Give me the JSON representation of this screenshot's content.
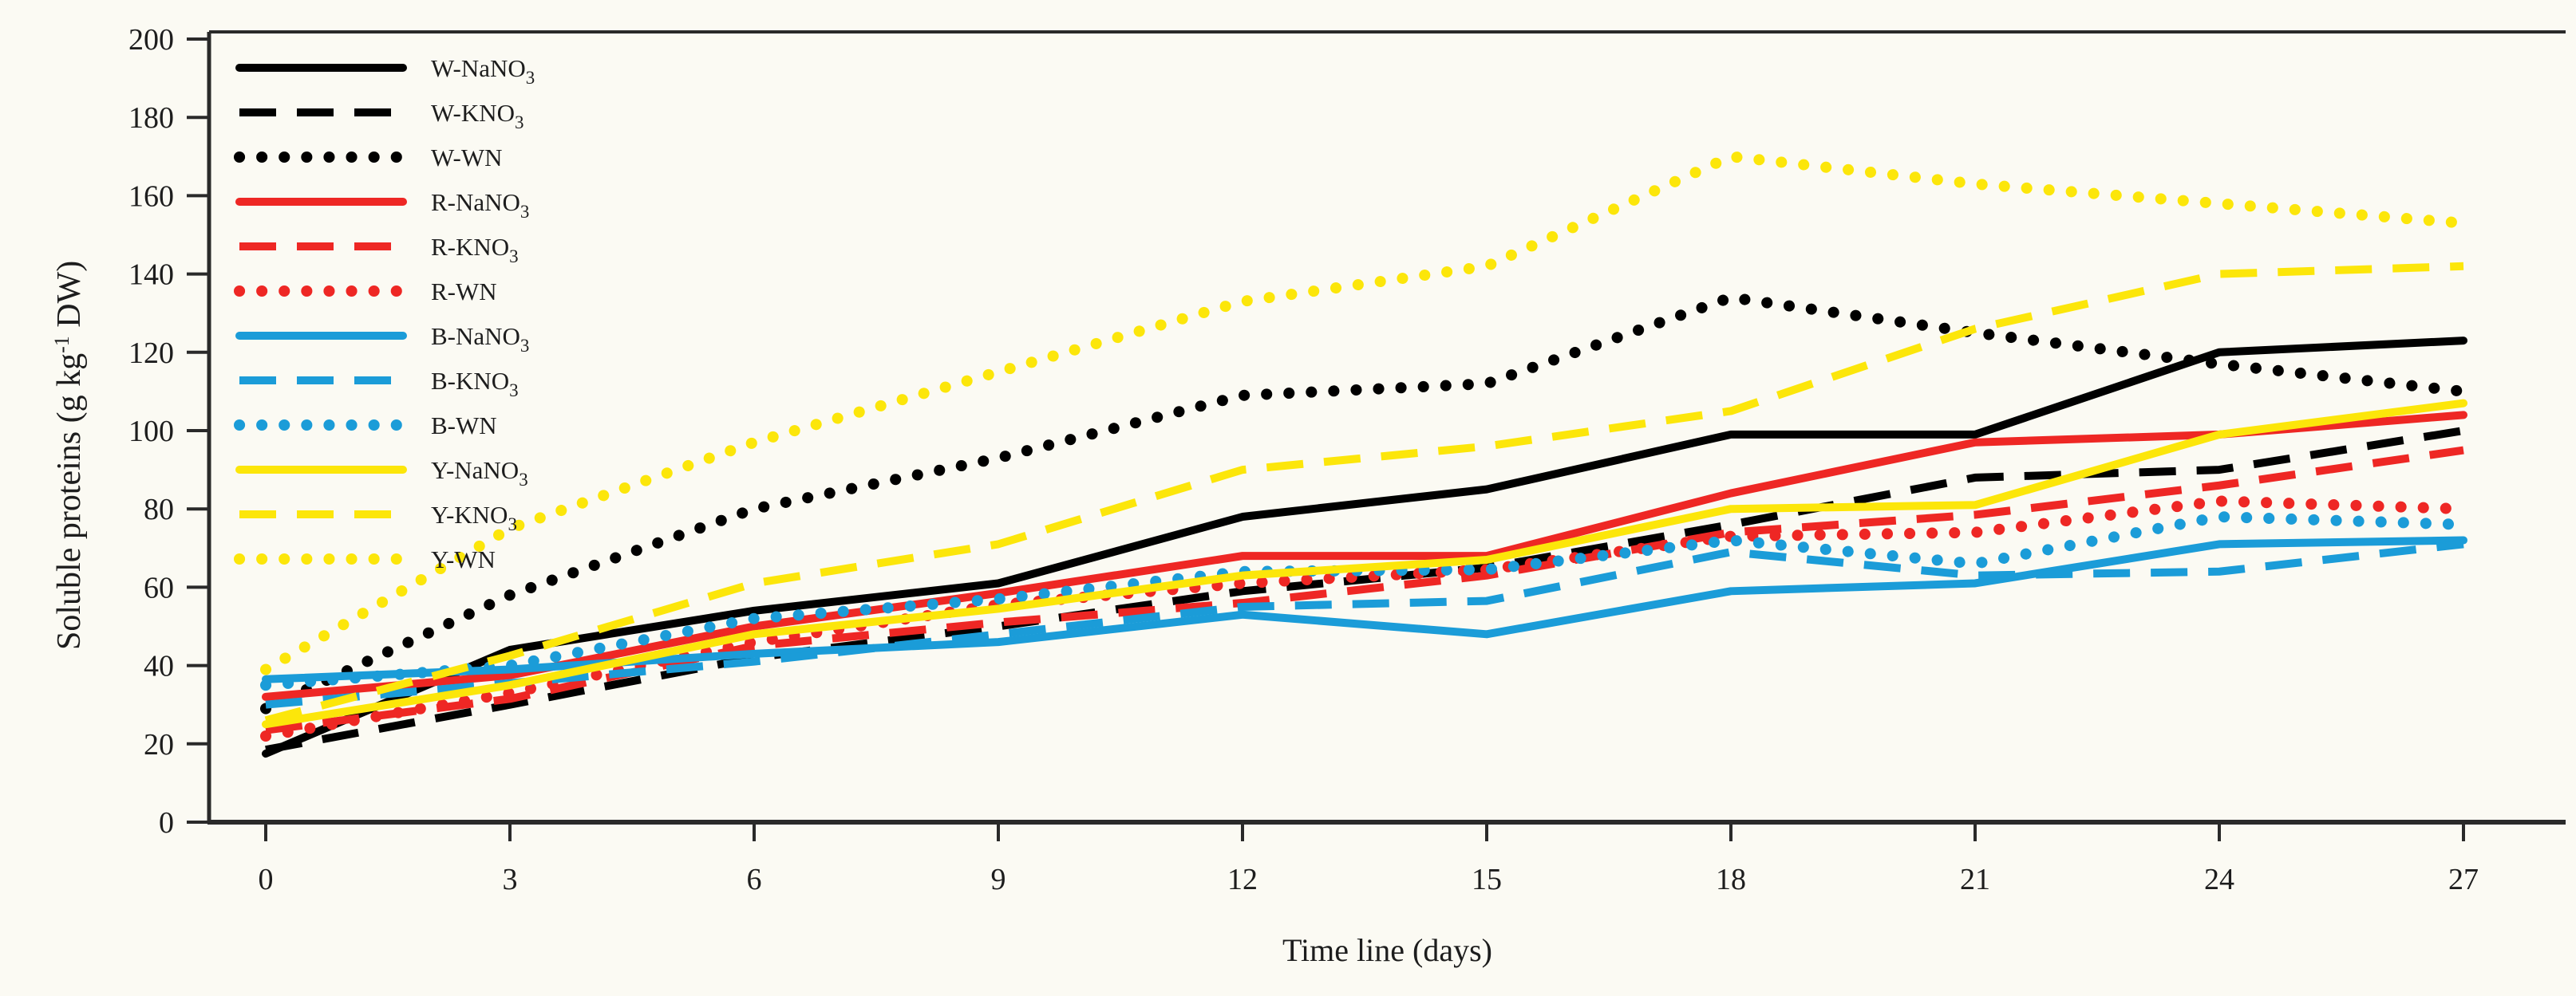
{
  "figure": {
    "background": "#fbfaf3",
    "axis_color": "#2a2a2a",
    "xlabel": "Time line (days)",
    "ylabel_parts": {
      "main": "Soluble proteins  (g kg",
      "sup": "-1",
      "tail": " DW)"
    }
  },
  "chart_data": {
    "type": "line",
    "title": "",
    "xlabel": "Time line (days)",
    "ylabel": "Soluble proteins (g kg^-1 DW)",
    "x": [
      0,
      3,
      6,
      9,
      12,
      15,
      18,
      21,
      24,
      27
    ],
    "xticks": [
      0,
      3,
      6,
      9,
      12,
      15,
      18,
      21,
      24,
      27
    ],
    "yticks": [
      0,
      20,
      40,
      60,
      80,
      100,
      120,
      140,
      160,
      180,
      200
    ],
    "xlim": [
      0,
      27
    ],
    "ylim": [
      0,
      200
    ],
    "grid": false,
    "legend_position": "upper-left-inside",
    "series": [
      {
        "label": "W-NaNO3",
        "name_main": "W-NaNO",
        "name_sub": "3",
        "color": "#000000",
        "style": "solid",
        "values": [
          17.5,
          44,
          54,
          61,
          78,
          85,
          99,
          99,
          120,
          123
        ]
      },
      {
        "label": "W-KNO3",
        "name_main": "W-KNO",
        "name_sub": "3",
        "color": "#000000",
        "style": "dashed",
        "values": [
          18.5,
          30,
          42,
          50,
          59,
          65,
          76,
          88,
          90,
          100
        ]
      },
      {
        "label": "W-WN",
        "name_main": "W-WN",
        "name_sub": "",
        "color": "#000000",
        "style": "dotted",
        "values": [
          29,
          58,
          80,
          93,
          109,
          112,
          134,
          125,
          117,
          110
        ]
      },
      {
        "label": "R-NaNO3",
        "name_main": "R-NaNO",
        "name_sub": "3",
        "color": "#ee2724",
        "style": "solid",
        "values": [
          32,
          37.5,
          50,
          58.5,
          68,
          68,
          84,
          97,
          99,
          104
        ]
      },
      {
        "label": "R-KNO3",
        "name_main": "R-KNO",
        "name_sub": "3",
        "color": "#ee2724",
        "style": "dashed",
        "values": [
          23.5,
          31.5,
          45,
          51,
          56,
          63,
          74,
          78.5,
          86,
          95
        ]
      },
      {
        "label": "R-WN",
        "name_main": "R-WN",
        "name_sub": "",
        "color": "#ee2724",
        "style": "dotted",
        "values": [
          22,
          33,
          46,
          55.5,
          61,
          64.5,
          73,
          74,
          82,
          80
        ]
      },
      {
        "label": "B-NaNO3",
        "name_main": "B-NaNO",
        "name_sub": "3",
        "color": "#1b9cd8",
        "style": "solid",
        "values": [
          36.5,
          39,
          43,
          46,
          53,
          48,
          59,
          61,
          71,
          72
        ]
      },
      {
        "label": "B-KNO3",
        "name_main": "B-KNO",
        "name_sub": "3",
        "color": "#1b9cd8",
        "style": "dashed",
        "values": [
          30,
          35.5,
          41,
          48,
          55,
          56.5,
          69,
          63,
          64,
          71
        ]
      },
      {
        "label": "B-WN",
        "name_main": "B-WN",
        "name_sub": "",
        "color": "#1b9cd8",
        "style": "dotted",
        "values": [
          35,
          40,
          52,
          57,
          64,
          64.5,
          72,
          66,
          78,
          76
        ]
      },
      {
        "label": "Y-NaNO3",
        "name_main": "Y-NaNO",
        "name_sub": "3",
        "color": "#fce60a",
        "style": "solid",
        "values": [
          25,
          35,
          48,
          54.5,
          63,
          67,
          80,
          81,
          99,
          107
        ]
      },
      {
        "label": "Y-KNO3",
        "name_main": "Y-KNO",
        "name_sub": "3",
        "color": "#fce60a",
        "style": "dashed",
        "values": [
          26,
          42.5,
          61,
          71,
          90,
          96,
          105,
          126,
          140,
          142
        ]
      },
      {
        "label": "Y-WN",
        "name_main": "Y-WN",
        "name_sub": "",
        "color": "#fce60a",
        "style": "dotted",
        "values": [
          39,
          75,
          97,
          115,
          133,
          142,
          170,
          163,
          158,
          153
        ]
      }
    ]
  }
}
